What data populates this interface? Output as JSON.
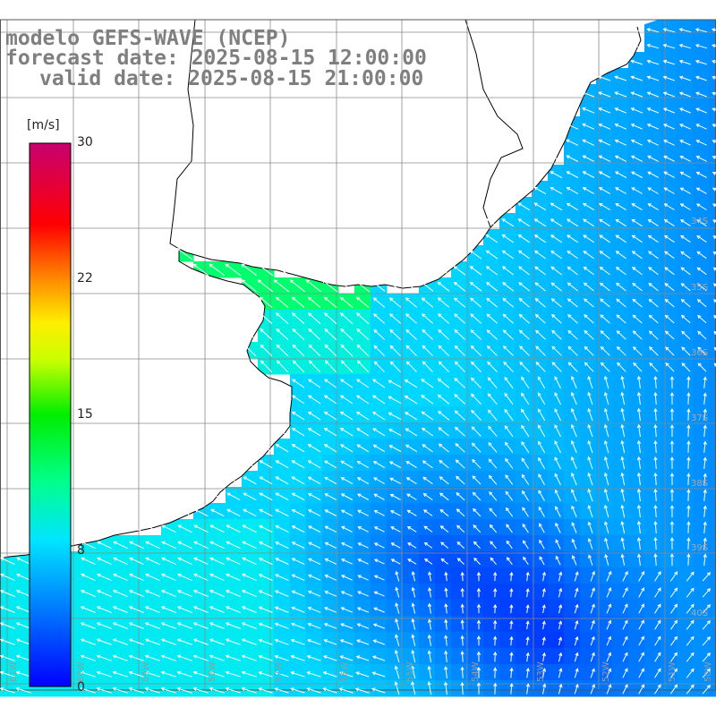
{
  "title": {
    "line1": "modelo GEFS-WAVE (NCEP)",
    "line2": "forecast date: 2025-08-15 12:00:00",
    "line3": "valid date: 2025-08-15 21:00:00"
  },
  "colorbar": {
    "unit": "[m/s]",
    "ticks": [
      {
        "label": "30",
        "value": 30
      },
      {
        "label": "22",
        "value": 22
      },
      {
        "label": "15",
        "value": 15
      },
      {
        "label": "8",
        "value": 8
      },
      {
        "label": "0",
        "value": 0
      }
    ]
  },
  "map": {
    "lon_labels": [
      "61W",
      "60W",
      "59W",
      "58W",
      "57W",
      "56W",
      "55W",
      "54W",
      "53W",
      "52W",
      "51W",
      "50W"
    ],
    "lat_labels": [
      "34S",
      "35S",
      "36S",
      "37S",
      "38S",
      "39S",
      "40S"
    ],
    "colors": {
      "land": "#ffffff",
      "coast": "#000000",
      "grid": "#8a8a8a",
      "arrow": "#ffffff",
      "calm": "#0000ff",
      "strong": "#00ff80"
    }
  }
}
